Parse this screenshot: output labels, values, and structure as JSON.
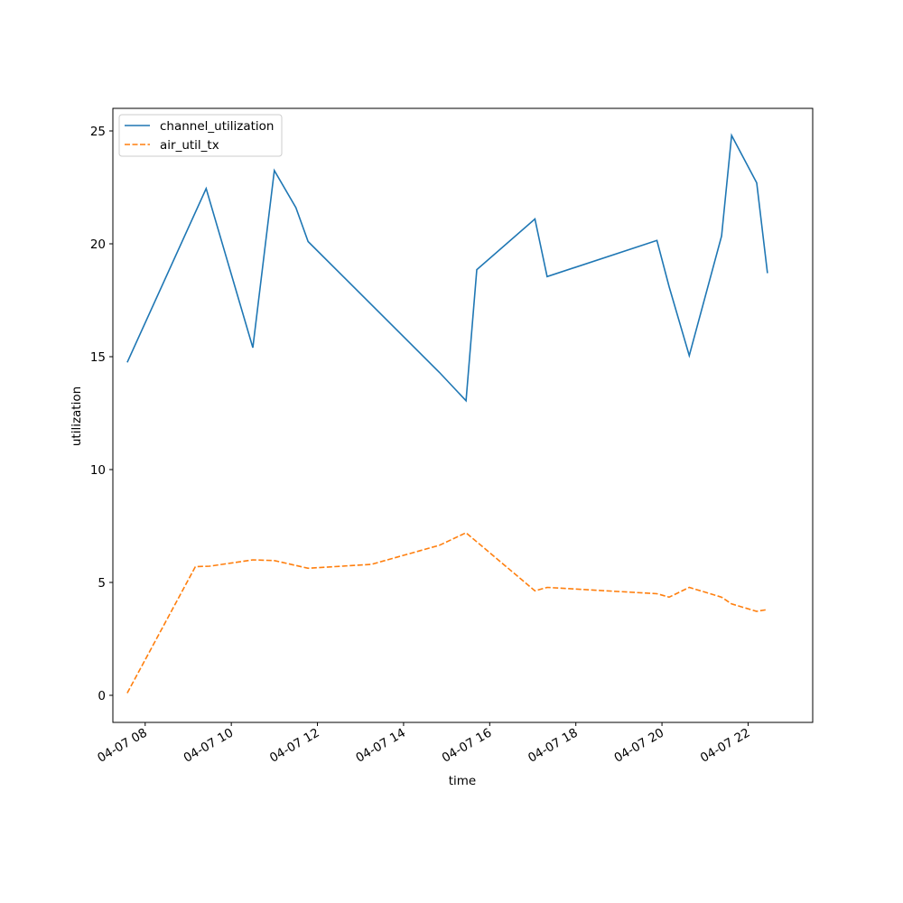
{
  "chart_data": {
    "type": "line",
    "title": "",
    "xlabel": "time",
    "ylabel": "utilization",
    "x_tick_labels": [
      "04-07 08",
      "04-07 10",
      "04-07 12",
      "04-07 14",
      "04-07 16",
      "04-07 18",
      "04-07 20",
      "04-07 22"
    ],
    "y_ticks": [
      0,
      5,
      10,
      15,
      20,
      25
    ],
    "ylim": [
      -1.2,
      26.0
    ],
    "xlim": [
      "04-07 07:15",
      "04-07 23:30"
    ],
    "grid": false,
    "legend_position": "upper-left",
    "series": [
      {
        "name": "channel_utilization",
        "color": "#1f77b4",
        "dash": "solid",
        "points": [
          {
            "x": "04-07 07:35",
            "y": 14.75
          },
          {
            "x": "04-07 09:25",
            "y": 22.45
          },
          {
            "x": "04-07 10:30",
            "y": 15.4
          },
          {
            "x": "04-07 11:00",
            "y": 23.25
          },
          {
            "x": "04-07 11:30",
            "y": 21.6
          },
          {
            "x": "04-07 11:47",
            "y": 20.1
          },
          {
            "x": "04-07 14:50",
            "y": 14.3
          },
          {
            "x": "04-07 15:27",
            "y": 13.05
          },
          {
            "x": "04-07 15:42",
            "y": 18.85
          },
          {
            "x": "04-07 17:03",
            "y": 21.1
          },
          {
            "x": "04-07 17:20",
            "y": 18.55
          },
          {
            "x": "04-07 19:53",
            "y": 20.15
          },
          {
            "x": "04-07 20:10",
            "y": 18.1
          },
          {
            "x": "04-07 20:38",
            "y": 15.05
          },
          {
            "x": "04-07 21:23",
            "y": 20.35
          },
          {
            "x": "04-07 21:37",
            "y": 24.8
          },
          {
            "x": "04-07 22:12",
            "y": 22.7
          },
          {
            "x": "04-07 22:27",
            "y": 18.7
          }
        ]
      },
      {
        "name": "air_util_tx",
        "color": "#ff7f0e",
        "dash": "dashed",
        "points": [
          {
            "x": "04-07 07:35",
            "y": 0.1
          },
          {
            "x": "04-07 09:10",
            "y": 5.7
          },
          {
            "x": "04-07 09:30",
            "y": 5.72
          },
          {
            "x": "04-07 10:30",
            "y": 6.0
          },
          {
            "x": "04-07 11:00",
            "y": 5.97
          },
          {
            "x": "04-07 11:47",
            "y": 5.63
          },
          {
            "x": "04-07 13:15",
            "y": 5.8
          },
          {
            "x": "04-07 14:50",
            "y": 6.65
          },
          {
            "x": "04-07 15:27",
            "y": 7.2
          },
          {
            "x": "04-07 17:03",
            "y": 4.63
          },
          {
            "x": "04-07 17:20",
            "y": 4.78
          },
          {
            "x": "04-07 19:53",
            "y": 4.5
          },
          {
            "x": "04-07 20:10",
            "y": 4.35
          },
          {
            "x": "04-07 20:38",
            "y": 4.78
          },
          {
            "x": "04-07 21:23",
            "y": 4.35
          },
          {
            "x": "04-07 21:37",
            "y": 4.05
          },
          {
            "x": "04-07 22:12",
            "y": 3.72
          },
          {
            "x": "04-07 22:27",
            "y": 3.8
          }
        ]
      }
    ]
  }
}
